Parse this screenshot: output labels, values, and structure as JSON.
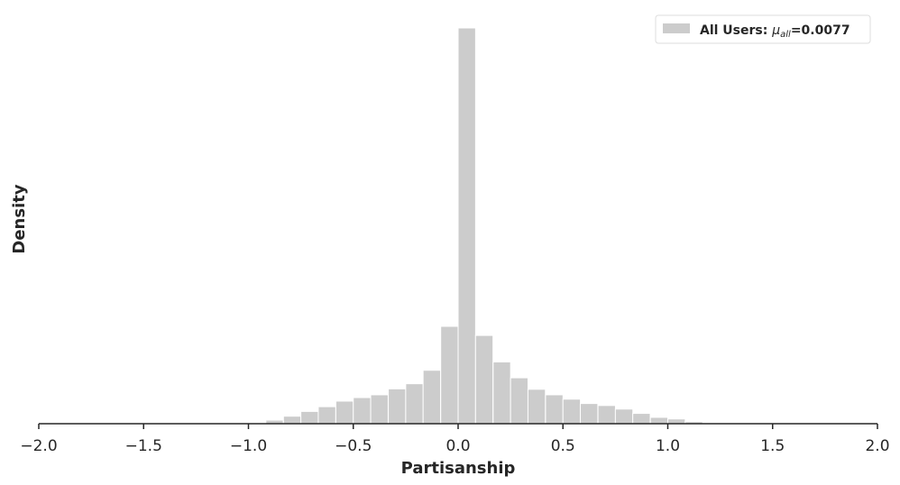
{
  "chart_data": {
    "type": "bar",
    "xlabel": "Partisanship",
    "ylabel": "Density",
    "xlim": [
      -2.0,
      2.0
    ],
    "ylim": [
      0,
      1.0
    ],
    "grid": false,
    "legend_position": "top-right",
    "y_ticks_shown": false,
    "x_ticks": [
      -2.0,
      -1.5,
      -1.0,
      -0.5,
      0.0,
      0.5,
      1.0,
      1.5,
      2.0
    ],
    "x_tick_labels": [
      "−2.0",
      "−1.5",
      "−1.0",
      "−0.5",
      "0.0",
      "0.5",
      "1.0",
      "1.5",
      "2.0"
    ],
    "bin_width": 0.0833,
    "bin_starts": [
      -1.0,
      -0.917,
      -0.833,
      -0.75,
      -0.667,
      -0.583,
      -0.5,
      -0.417,
      -0.333,
      -0.25,
      -0.167,
      -0.083,
      0.0,
      0.083,
      0.167,
      0.25,
      0.333,
      0.417,
      0.5,
      0.583,
      0.667,
      0.75,
      0.833,
      0.917,
      1.0,
      1.083,
      1.167
    ],
    "values": [
      0.002,
      0.009,
      0.019,
      0.031,
      0.043,
      0.057,
      0.066,
      0.073,
      0.088,
      0.101,
      0.135,
      0.246,
      1.0,
      0.223,
      0.156,
      0.116,
      0.087,
      0.073,
      0.062,
      0.051,
      0.046,
      0.037,
      0.026,
      0.016,
      0.012,
      0.005,
      0.001
    ],
    "series": [
      {
        "name_prefix": "All Users: ",
        "name_symbol": "μ",
        "name_subscript": "all",
        "name_suffix": "=0.0077",
        "color": "#cccccc"
      }
    ],
    "colors": {
      "bar": "#cccccc",
      "bar_edge": "#ffffff",
      "axis": "#262626",
      "legend_border": "#dddddd"
    }
  }
}
